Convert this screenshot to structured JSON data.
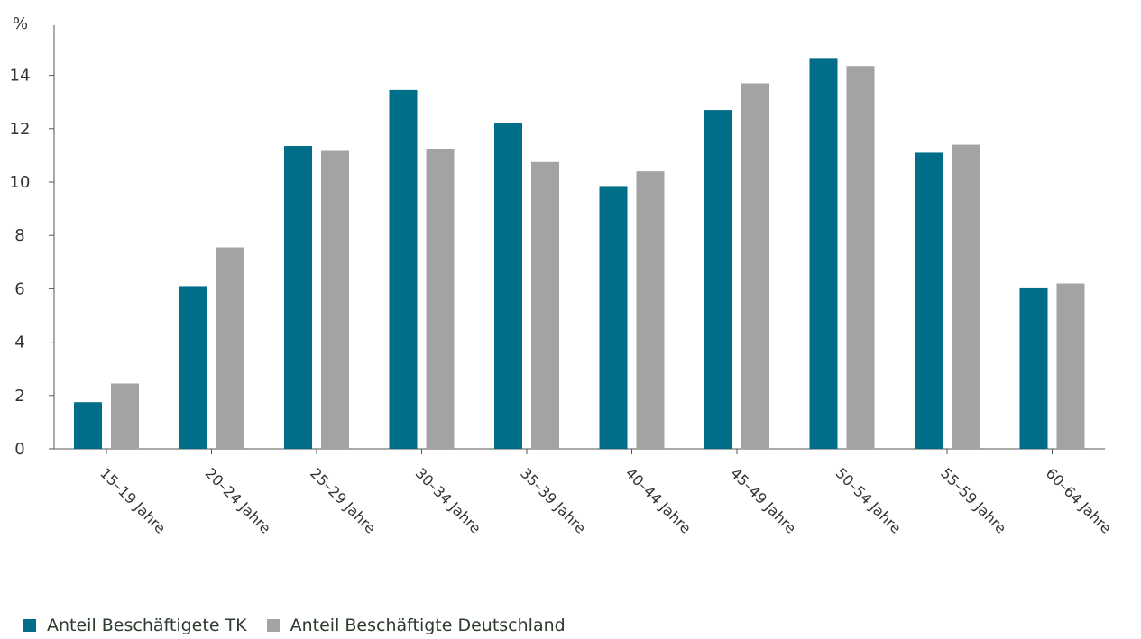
{
  "chart_data": {
    "type": "bar",
    "ylabel": "%",
    "ylim": [
      0,
      16
    ],
    "yticks": [
      0,
      2,
      4,
      6,
      8,
      10,
      12,
      14
    ],
    "grid": false,
    "legend_position": "bottom-left",
    "categories": [
      "15–19 Jahre",
      "20–24 Jahre",
      "25–29 Jahre",
      "30–34 Jahre",
      "35–39 Jahre",
      "40–44 Jahre",
      "45–49 Jahre",
      "50–54 Jahre",
      "55–59 Jahre",
      "60–64 Jahre"
    ],
    "series": [
      {
        "name": "Anteil Beschäftigete TK",
        "color": "#006e88",
        "values": [
          1.75,
          6.1,
          11.35,
          13.45,
          12.2,
          9.85,
          12.7,
          14.65,
          11.1,
          6.05
        ]
      },
      {
        "name": "Anteil Beschäftigte Deutschland",
        "color": "#a3a3a3",
        "values": [
          2.45,
          7.55,
          11.2,
          11.25,
          10.75,
          10.4,
          13.7,
          14.35,
          11.4,
          6.2
        ]
      }
    ]
  }
}
